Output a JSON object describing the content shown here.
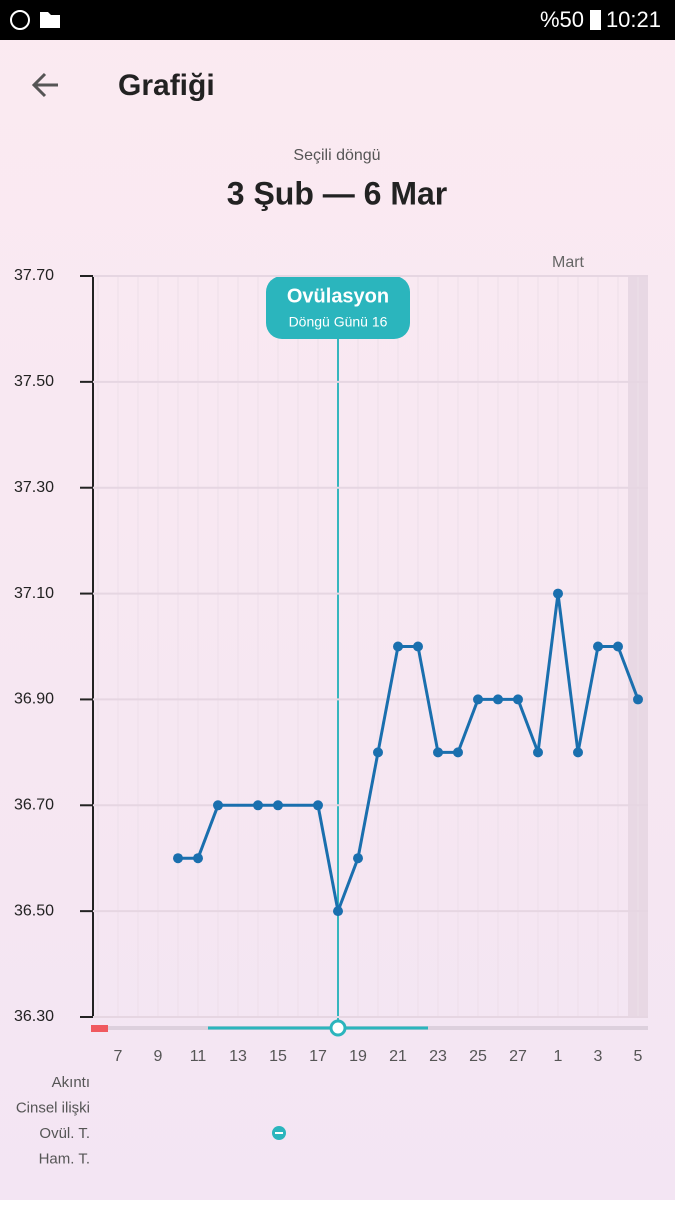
{
  "status_bar": {
    "battery": "%50",
    "time": "10:21"
  },
  "header": {
    "title": "Grafiği"
  },
  "cycle": {
    "label": "Seçili döngü",
    "range": "3 Şub — 6 Mar"
  },
  "chart_data": {
    "type": "line",
    "month_label": "Mart",
    "annotation": {
      "title": "Ovülasyon",
      "subtitle": "Döngü Günü 16"
    },
    "categories": [
      null,
      "7",
      null,
      "9",
      null,
      "11",
      null,
      "13",
      null,
      "15",
      null,
      "17",
      null,
      "19",
      null,
      "21",
      null,
      "23",
      null,
      "25",
      null,
      "27",
      null,
      "1",
      null,
      "3",
      null,
      "5"
    ],
    "series": [
      {
        "color": "#1a6fae",
        "values": [
          null,
          null,
          null,
          null,
          36.6,
          36.6,
          36.7,
          null,
          36.7,
          36.7,
          null,
          36.7,
          36.5,
          36.6,
          36.8,
          37.0,
          37.0,
          36.8,
          36.8,
          36.9,
          36.9,
          36.9,
          36.8,
          37.1,
          36.8,
          37.0,
          37.0,
          36.9
        ]
      }
    ],
    "ylim": [
      36.3,
      37.7
    ],
    "yticks": [
      {
        "value": 36.3,
        "label": "36.30"
      },
      {
        "value": 36.5,
        "label": "36.50"
      },
      {
        "value": 36.7,
        "label": "36.70"
      },
      {
        "value": 36.9,
        "label": "36.90"
      },
      {
        "value": 37.1,
        "label": "37.10"
      },
      {
        "value": 37.3,
        "label": "37.30"
      },
      {
        "value": 37.5,
        "label": "37.50"
      },
      {
        "value": 37.7,
        "label": "37.70"
      }
    ],
    "grid": true
  },
  "rows": [
    "Akıntı",
    "Cinsel ilişki",
    "Ovül. T.",
    "Ham. T."
  ]
}
